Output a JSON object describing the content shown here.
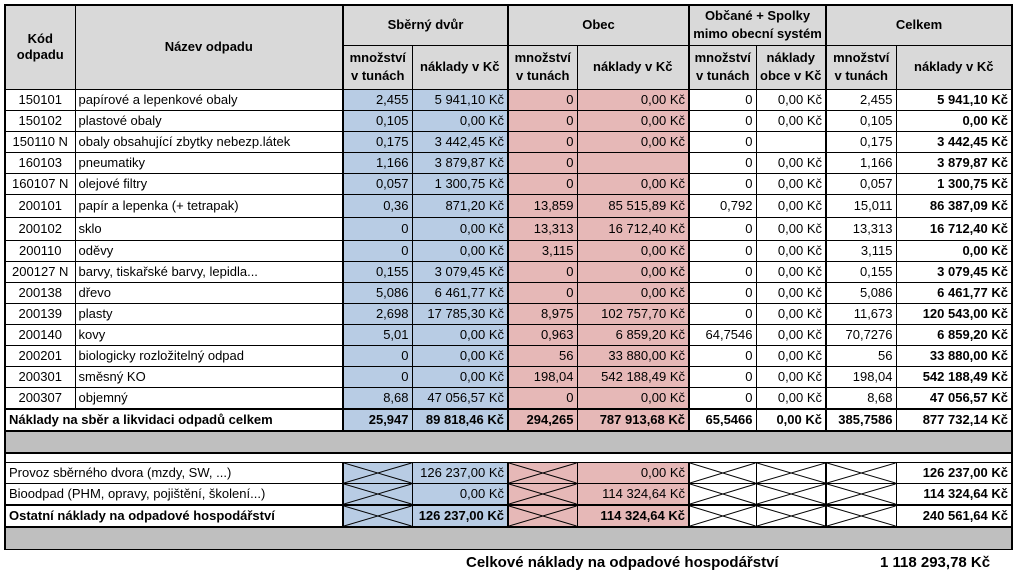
{
  "headers": {
    "kod": "Kód odpadu",
    "nazev": "Název odpadu",
    "sberny_dvur": "Sběrný dvůr",
    "obec": "Obec",
    "obcane": "Občané + Spolky mimo obecní systém",
    "celkem": "Celkem",
    "mnozstvi": "množství v tunách",
    "naklady": "náklady v Kč",
    "naklady_obce": "náklady obce v Kč",
    "mnozstvi_v": "množství v tunách"
  },
  "rows": [
    {
      "kod": "150101",
      "nazev": "papírové a lepenkové obaly",
      "sd_m": "2,455",
      "sd_n": "5 941,10 Kč",
      "ob_m": "0",
      "ob_n": "0,00 Kč",
      "os_m": "0",
      "os_n": "0,00 Kč",
      "c_m": "2,455",
      "c_n": "5 941,10 Kč"
    },
    {
      "kod": "150102",
      "nazev": "plastové obaly",
      "sd_m": "0,105",
      "sd_n": "0,00 Kč",
      "ob_m": "0",
      "ob_n": "0,00 Kč",
      "os_m": "0",
      "os_n": "0,00 Kč",
      "c_m": "0,105",
      "c_n": "0,00 Kč"
    },
    {
      "kod": "150110 N",
      "nazev": "obaly obsahující zbytky nebezp.látek",
      "sd_m": "0,175",
      "sd_n": "3 442,45 Kč",
      "ob_m": "0",
      "ob_n": "0,00 Kč",
      "os_m": "0",
      "os_n": "",
      "c_m": "0,175",
      "c_n": "3 442,45 Kč"
    },
    {
      "kod": "160103",
      "nazev": "pneumatiky",
      "sd_m": "1,166",
      "sd_n": "3 879,87 Kč",
      "ob_m": "0",
      "ob_n": "",
      "os_m": "0",
      "os_n": "0,00 Kč",
      "c_m": "1,166",
      "c_n": "3 879,87 Kč"
    },
    {
      "kod": "160107 N",
      "nazev": "olejové filtry",
      "sd_m": "0,057",
      "sd_n": "1 300,75 Kč",
      "ob_m": "0",
      "ob_n": "0,00 Kč",
      "os_m": "0",
      "os_n": "0,00 Kč",
      "c_m": "0,057",
      "c_n": "1 300,75 Kč"
    },
    {
      "kod": "200101",
      "nazev": "papír a lepenka (+ tetrapak)",
      "sd_m": "0,36",
      "sd_n": "871,20 Kč",
      "ob_m": "13,859",
      "ob_n": "85 515,89 Kč",
      "os_m": "0,792",
      "os_n": "0,00 Kč",
      "c_m": "15,011",
      "c_n": "86 387,09 Kč"
    },
    {
      "kod": "200102",
      "nazev": "sklo",
      "sd_m": "0",
      "sd_n": "0,00 Kč",
      "ob_m": "13,313",
      "ob_n": "16 712,40 Kč",
      "os_m": "0",
      "os_n": "0,00 Kč",
      "c_m": "13,313",
      "c_n": "16 712,40 Kč"
    },
    {
      "kod": "200110",
      "nazev": "oděvy",
      "sd_m": "0",
      "sd_n": "0,00 Kč",
      "ob_m": "3,115",
      "ob_n": "0,00 Kč",
      "os_m": "0",
      "os_n": "0,00 Kč",
      "c_m": "3,115",
      "c_n": "0,00 Kč"
    },
    {
      "kod": "200127 N",
      "nazev": " barvy, tiskařské barvy, lepidla...",
      "sd_m": "0,155",
      "sd_n": "3 079,45 Kč",
      "ob_m": "0",
      "ob_n": "0,00 Kč",
      "os_m": "0",
      "os_n": "0,00 Kč",
      "c_m": "0,155",
      "c_n": "3 079,45 Kč"
    },
    {
      "kod": "200138",
      "nazev": "dřevo",
      "sd_m": "5,086",
      "sd_n": "6 461,77 Kč",
      "ob_m": "0",
      "ob_n": "0,00 Kč",
      "os_m": "0",
      "os_n": "0,00 Kč",
      "c_m": "5,086",
      "c_n": "6 461,77 Kč"
    },
    {
      "kod": "200139",
      "nazev": "plasty",
      "sd_m": "2,698",
      "sd_n": "17 785,30 Kč",
      "ob_m": "8,975",
      "ob_n": "102 757,70 Kč",
      "os_m": "0",
      "os_n": "0,00 Kč",
      "c_m": "11,673",
      "c_n": "120 543,00 Kč"
    },
    {
      "kod": "200140",
      "nazev": "kovy",
      "sd_m": "5,01",
      "sd_n": "0,00 Kč",
      "ob_m": "0,963",
      "ob_n": "6 859,20 Kč",
      "os_m": "64,7546",
      "os_n": "0,00 Kč",
      "c_m": "70,7276",
      "c_n": "6 859,20 Kč"
    },
    {
      "kod": "200201",
      "nazev": "biologicky rozložitelný odpad",
      "sd_m": "0",
      "sd_n": "0,00 Kč",
      "ob_m": "56",
      "ob_n": "33 880,00 Kč",
      "os_m": "0",
      "os_n": "0,00 Kč",
      "c_m": "56",
      "c_n": "33 880,00 Kč"
    },
    {
      "kod": "200301",
      "nazev": "směsný KO",
      "sd_m": "0",
      "sd_n": "0,00 Kč",
      "ob_m": "198,04",
      "ob_n": "542 188,49 Kč",
      "os_m": "0",
      "os_n": "0,00 Kč",
      "c_m": "198,04",
      "c_n": "542 188,49 Kč"
    },
    {
      "kod": "200307",
      "nazev": "objemný",
      "sd_m": "8,68",
      "sd_n": "47 056,57 Kč",
      "ob_m": "0",
      "ob_n": "0,00 Kč",
      "os_m": "0",
      "os_n": "0,00 Kč",
      "c_m": "8,68",
      "c_n": "47 056,57 Kč"
    }
  ],
  "totals": {
    "label": "Náklady na sběr a likvidaci odpadů celkem",
    "sd_m": "25,947",
    "sd_n": "89 818,46 Kč",
    "ob_m": "294,265",
    "ob_n": "787 913,68 Kč",
    "os_m": "65,5466",
    "os_n": "0,00 Kč",
    "c_m": "385,7586",
    "c_n": "877 732,14 Kč"
  },
  "other": [
    {
      "label": "Provoz sběrného dvora (mzdy, SW, ...)",
      "sd_n": "126 237,00 Kč",
      "ob_n": "0,00 Kč",
      "c_n": "126 237,00 Kč"
    },
    {
      "label": "Bioodpad (PHM, opravy, pojištění, školení...)",
      "sd_n": "0,00 Kč",
      "ob_n": "114 324,64 Kč",
      "c_n": "114 324,64 Kč"
    },
    {
      "label": "Ostatní náklady na odpadové hospodářství",
      "sd_n": "126 237,00 Kč",
      "ob_n": "114 324,64 Kč",
      "c_n": "240 561,64 Kč"
    }
  ],
  "summary": {
    "label": "Celkové náklady na odpadové hospodářství",
    "value": "1 118 293,78 Kč"
  }
}
